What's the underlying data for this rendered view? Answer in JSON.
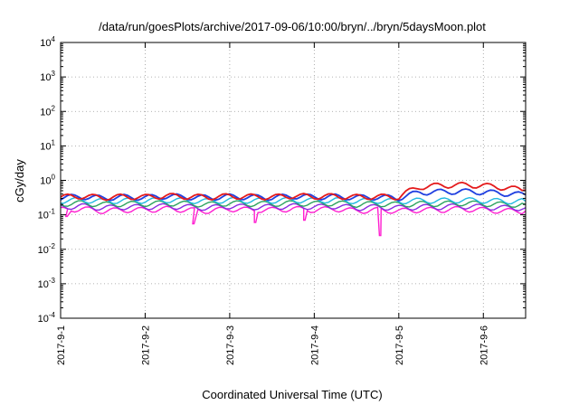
{
  "chart_data": {
    "type": "line",
    "title": "/data/run/goesPlots/archive/2017-09-06/10:00/bryn/../bryn/5daysMoon.plot",
    "xlabel": "Coordinated Universal Time (UTC)",
    "ylabel": "cGy/day",
    "yscale": "log",
    "ylim": [
      0.0001,
      10000
    ],
    "y_ticks": [
      {
        "base": "10",
        "exp": "-4",
        "value": 0.0001
      },
      {
        "base": "10",
        "exp": "-3",
        "value": 0.001
      },
      {
        "base": "10",
        "exp": "-2",
        "value": 0.01
      },
      {
        "base": "10",
        "exp": "-1",
        "value": 0.1
      },
      {
        "base": "10",
        "exp": "0",
        "value": 1
      },
      {
        "base": "10",
        "exp": "1",
        "value": 10
      },
      {
        "base": "10",
        "exp": "2",
        "value": 100
      },
      {
        "base": "10",
        "exp": "3",
        "value": 1000
      },
      {
        "base": "10",
        "exp": "4",
        "value": 10000
      }
    ],
    "xlim": [
      "2017-09-01T00:00",
      "2017-09-06T12:00"
    ],
    "x_ticks": [
      {
        "label": "2017-9-1",
        "value": "2017-09-01"
      },
      {
        "label": "2017-9-2",
        "value": "2017-09-02"
      },
      {
        "label": "2017-9-3",
        "value": "2017-09-03"
      },
      {
        "label": "2017-9-4",
        "value": "2017-09-04"
      },
      {
        "label": "2017-9-5",
        "value": "2017-09-05"
      },
      {
        "label": "2017-9-6",
        "value": "2017-09-06"
      }
    ],
    "grid": true,
    "grid_style": "dotted",
    "x": [
      "2017-09-01T00:00",
      "2017-09-01T06:00",
      "2017-09-01T12:00",
      "2017-09-01T18:00",
      "2017-09-02T00:00",
      "2017-09-02T06:00",
      "2017-09-02T12:00",
      "2017-09-02T18:00",
      "2017-09-03T00:00",
      "2017-09-03T06:00",
      "2017-09-03T12:00",
      "2017-09-03T18:00",
      "2017-09-04T00:00",
      "2017-09-04T06:00",
      "2017-09-04T12:00",
      "2017-09-04T18:00",
      "2017-09-05T00:00",
      "2017-09-05T06:00",
      "2017-09-05T12:00",
      "2017-09-05T18:00",
      "2017-09-06T00:00",
      "2017-09-06T06:00",
      "2017-09-06T12:00"
    ],
    "series": [
      {
        "color": "#e41a1c",
        "values": [
          0.33,
          0.35,
          0.32,
          0.34,
          0.33,
          0.36,
          0.34,
          0.33,
          0.35,
          0.34,
          0.33,
          0.36,
          0.34,
          0.35,
          0.33,
          0.34,
          0.33,
          0.65,
          0.72,
          0.74,
          0.71,
          0.62,
          0.52
        ]
      },
      {
        "color": "#1f3fe0",
        "values": [
          0.32,
          0.34,
          0.31,
          0.33,
          0.32,
          0.35,
          0.33,
          0.32,
          0.34,
          0.33,
          0.32,
          0.35,
          0.33,
          0.34,
          0.32,
          0.33,
          0.31,
          0.45,
          0.47,
          0.48,
          0.46,
          0.42,
          0.38
        ]
      },
      {
        "color": "#20b8e0",
        "values": [
          0.26,
          0.27,
          0.25,
          0.26,
          0.26,
          0.27,
          0.26,
          0.25,
          0.27,
          0.26,
          0.26,
          0.27,
          0.26,
          0.27,
          0.25,
          0.26,
          0.25,
          0.26,
          0.26,
          0.27,
          0.26,
          0.25,
          0.25
        ]
      },
      {
        "color": "#2ca25f",
        "values": [
          0.21,
          0.22,
          0.2,
          0.21,
          0.21,
          0.22,
          0.21,
          0.2,
          0.22,
          0.21,
          0.21,
          0.22,
          0.21,
          0.22,
          0.2,
          0.21,
          0.2,
          0.21,
          0.21,
          0.22,
          0.21,
          0.2,
          0.2
        ]
      },
      {
        "color": "#8a2be2",
        "values": [
          0.17,
          0.18,
          0.16,
          0.17,
          0.17,
          0.18,
          0.17,
          0.16,
          0.18,
          0.17,
          0.17,
          0.18,
          0.17,
          0.18,
          0.16,
          0.17,
          0.16,
          0.17,
          0.17,
          0.18,
          0.17,
          0.16,
          0.16
        ]
      },
      {
        "color": "#ff1fd0",
        "values": [
          0.14,
          0.15,
          0.13,
          0.14,
          0.14,
          0.15,
          0.14,
          0.13,
          0.15,
          0.14,
          0.14,
          0.15,
          0.14,
          0.15,
          0.13,
          0.14,
          0.13,
          0.14,
          0.14,
          0.15,
          0.14,
          0.13,
          0.13
        ]
      }
    ],
    "dips": [
      {
        "x": "2017-09-01T01:30",
        "y": 0.09
      },
      {
        "x": "2017-09-02T13:30",
        "y": 0.055
      },
      {
        "x": "2017-09-03T07:00",
        "y": 0.06
      },
      {
        "x": "2017-09-03T21:00",
        "y": 0.07
      },
      {
        "x": "2017-09-04T18:30",
        "y": 0.025
      }
    ]
  }
}
